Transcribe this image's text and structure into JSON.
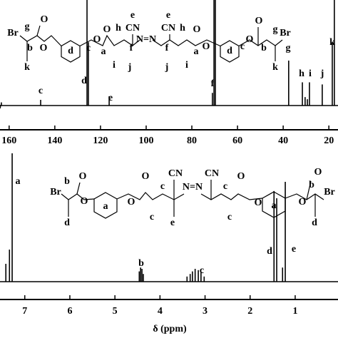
{
  "chart_data": [
    {
      "type": "spectrum",
      "color": "#000000",
      "x": [
        163.4,
        146.2,
        125.9,
        125.3,
        116.2,
        71.0,
        70.3,
        69.7,
        37.6,
        31.6,
        30.4,
        29.4,
        28.5,
        22.9,
        18.5,
        17.6
      ],
      "values": [
        3,
        5.4,
        100,
        60,
        8.8,
        12,
        100,
        100,
        42.6,
        22,
        8,
        6,
        22,
        20,
        59.5,
        100
      ],
      "xlim": [
        164,
        16
      ],
      "ylim": [
        0,
        100
      ],
      "xticks": [
        160,
        140,
        120,
        100,
        80,
        60,
        40,
        20
      ],
      "annotations": [
        "b",
        "c",
        "d",
        "e",
        "f",
        "g",
        "h",
        "i",
        "j",
        "k",
        "Br",
        "g",
        "O",
        "b",
        "O",
        "k",
        "d",
        "c",
        "O",
        "a",
        "O",
        "h",
        "i",
        "e",
        "CN",
        "f",
        "j",
        "N=N",
        "e",
        "CN",
        "f",
        "j",
        "h",
        "i",
        "O",
        "a",
        "O",
        "d",
        "c",
        "O",
        "O",
        "b",
        "g",
        "Br",
        "k"
      ]
    },
    {
      "type": "spectrum",
      "color": "#000000",
      "x": [
        7.42,
        7.34,
        7.28,
        4.46,
        4.43,
        4.4,
        4.37,
        3.4,
        3.33,
        3.28,
        3.22,
        3.15,
        3.09,
        3.02,
        1.47,
        1.41,
        1.28,
        1.22
      ],
      "values": [
        13.9,
        25,
        100,
        8,
        11,
        10,
        6,
        4,
        6,
        8,
        10,
        9,
        7,
        4,
        70.6,
        65,
        11,
        77.8
      ],
      "xlim": [
        7.55,
        0.05
      ],
      "ylim": [
        0,
        100
      ],
      "xticks": [
        7,
        6,
        5,
        4,
        3,
        2,
        1
      ],
      "xlabel": "δ (ppm)",
      "annotations": [
        "a",
        "b",
        "c",
        "d",
        "e",
        "Br",
        "b",
        "O",
        "d",
        "O",
        "a",
        "O",
        "O",
        "c",
        "c",
        "CN",
        "e",
        "N=N",
        "CN",
        "c",
        "c",
        "O",
        "O",
        "a",
        "O",
        "O",
        "b",
        "Br",
        "d"
      ]
    }
  ]
}
